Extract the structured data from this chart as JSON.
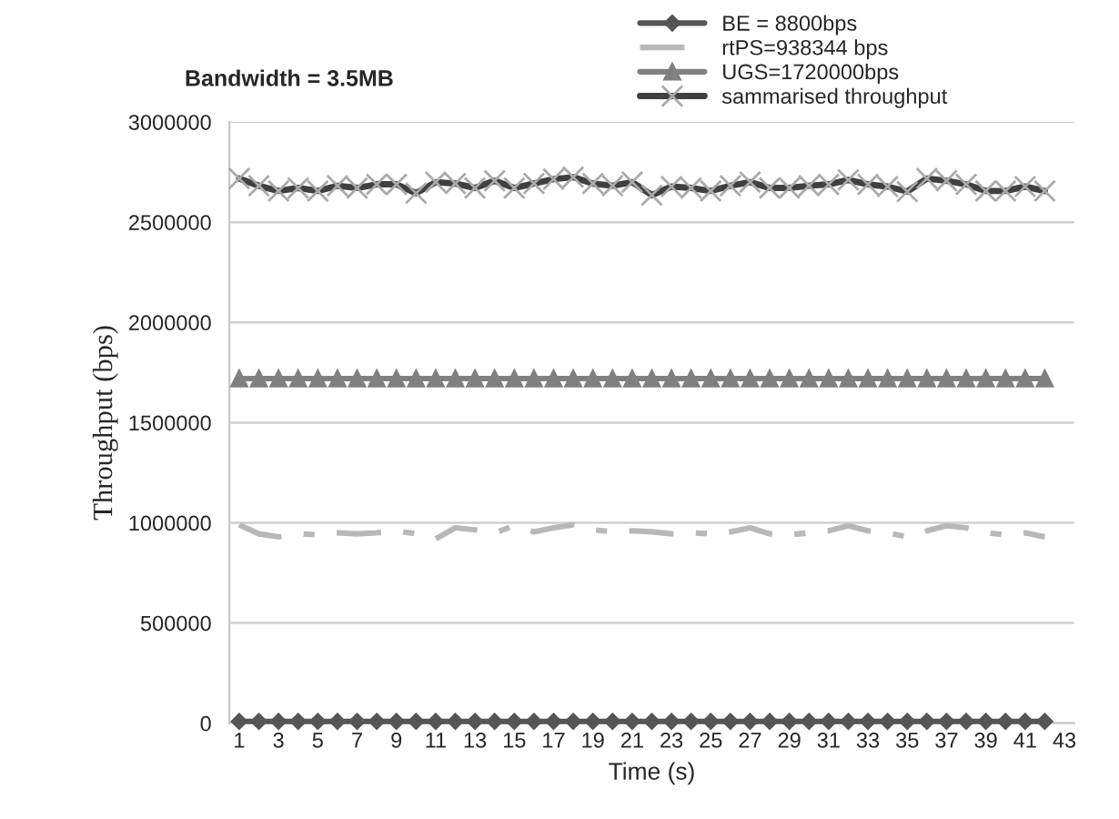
{
  "chart_data": {
    "type": "line",
    "title": "Bandwidth = 3.5MB",
    "xlabel": "Time (s)",
    "ylabel": "Throughput (bps)",
    "categories": [
      "1",
      null,
      "3",
      null,
      "5",
      null,
      "7",
      null,
      "9",
      null,
      "11",
      null,
      "13",
      null,
      "15",
      null,
      "17",
      null,
      "19",
      null,
      "21",
      null,
      "23",
      null,
      "25",
      null,
      "27",
      null,
      "29",
      null,
      "31",
      null,
      "33",
      null,
      "35",
      null,
      "37",
      null,
      "39",
      null,
      "41",
      null,
      "43"
    ],
    "series": [
      {
        "name": "BE = 8800bps",
        "color": "#555555",
        "marker": "diamond",
        "line_style": "solid",
        "values": [
          8800,
          8800,
          8800,
          8800,
          8800,
          8800,
          8800,
          8800,
          8800,
          8800,
          8800,
          8800,
          8800,
          8800,
          8800,
          8800,
          8800,
          8800,
          8800,
          8800,
          8800,
          8800,
          8800,
          8800,
          8800,
          8800,
          8800,
          8800,
          8800,
          8800,
          8800,
          8800,
          8800,
          8800,
          8800,
          8800,
          8800,
          8800,
          8800,
          8800,
          8800,
          8800,
          null
        ]
      },
      {
        "name": "rtPS=938344 bps",
        "color": "#b8b8b8",
        "marker": "none",
        "line_style": "dashed",
        "values": [
          990000,
          945000,
          930000,
          945000,
          940000,
          950000,
          945000,
          950000,
          960000,
          945000,
          920000,
          975000,
          965000,
          950000,
          985000,
          955000,
          975000,
          990000,
          965000,
          955000,
          960000,
          955000,
          945000,
          950000,
          945000,
          955000,
          975000,
          945000,
          940000,
          950000,
          960000,
          985000,
          960000,
          950000,
          930000,
          960000,
          985000,
          975000,
          950000,
          940000,
          950000,
          930000,
          null
        ]
      },
      {
        "name": "UGS=1720000bps",
        "color": "#808080",
        "marker": "triangle",
        "line_style": "solid",
        "values": [
          1720000,
          1720000,
          1720000,
          1720000,
          1720000,
          1720000,
          1720000,
          1720000,
          1720000,
          1720000,
          1720000,
          1720000,
          1720000,
          1720000,
          1720000,
          1720000,
          1720000,
          1720000,
          1720000,
          1720000,
          1720000,
          1720000,
          1720000,
          1720000,
          1720000,
          1720000,
          1720000,
          1720000,
          1720000,
          1720000,
          1720000,
          1720000,
          1720000,
          1720000,
          1720000,
          1720000,
          1720000,
          1720000,
          1720000,
          1720000,
          1720000,
          1720000,
          null
        ]
      },
      {
        "name": "sammarised throughput",
        "color": "#404040",
        "marker": "cross",
        "line_style": "solid",
        "values": [
          2718000,
          2682000,
          2656000,
          2671000,
          2656000,
          2682000,
          2671000,
          2689000,
          2689000,
          2645000,
          2700000,
          2693000,
          2671000,
          2707000,
          2671000,
          2693000,
          2715000,
          2725000,
          2693000,
          2682000,
          2700000,
          2635000,
          2678000,
          2671000,
          2656000,
          2682000,
          2700000,
          2671000,
          2671000,
          2682000,
          2689000,
          2711000,
          2689000,
          2678000,
          2653000,
          2718000,
          2707000,
          2689000,
          2656000,
          2656000,
          2678000,
          2656000,
          null
        ]
      }
    ],
    "ylim": [
      0,
      3000000
    ],
    "yticks": [
      0,
      500000,
      1000000,
      1500000,
      2000000,
      2500000,
      3000000
    ],
    "grid": "y",
    "legend": "top right"
  }
}
